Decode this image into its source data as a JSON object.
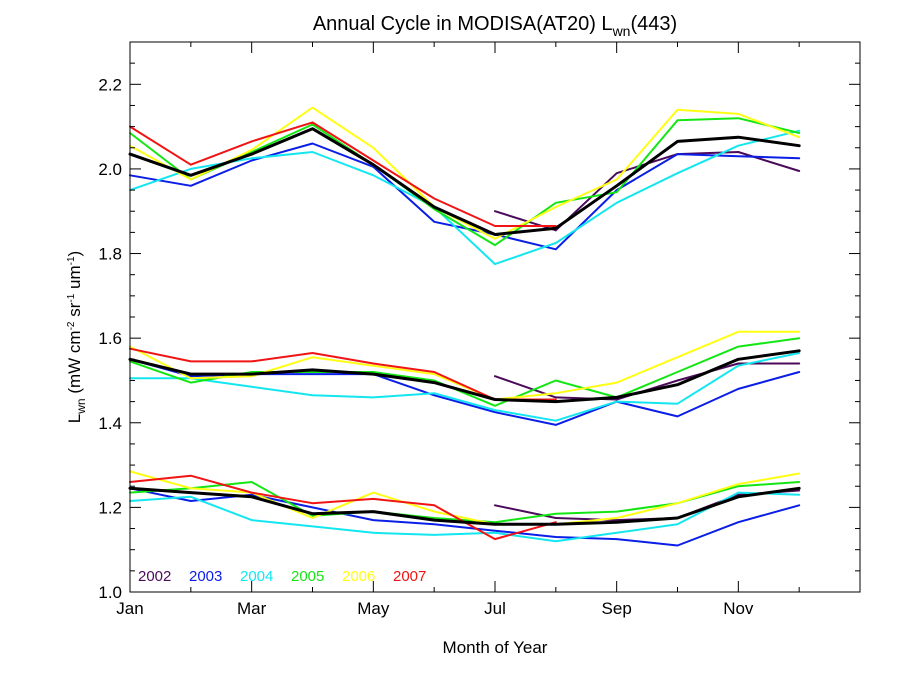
{
  "chart_data": {
    "type": "line",
    "title": "Annual Cycle in MODISA(AT20) L",
    "title_sub": "wn",
    "title_suffix": "(443)",
    "xlabel": "Month of Year",
    "ylabel": {
      "main": "L",
      "sub": "wn",
      "units_open": " (mW cm",
      "exp1": "-2",
      "mid": " sr",
      "exp2": "-1",
      "mid2": " um",
      "exp3": "-1",
      "close": ")"
    },
    "xlim": [
      1,
      13
    ],
    "ylim": [
      1.0,
      2.3
    ],
    "x_ticks": [
      1,
      3,
      5,
      7,
      9,
      11
    ],
    "x_tick_labels": [
      "Jan",
      "Mar",
      "May",
      "Jul",
      "Sep",
      "Nov"
    ],
    "y_ticks": [
      1.0,
      1.2,
      1.4,
      1.6,
      1.8,
      2.0,
      2.2
    ],
    "y_tick_labels": [
      "1.0",
      "1.2",
      "1.4",
      "1.6",
      "1.8",
      "2.0",
      "2.2"
    ],
    "grid": false,
    "legend_placement": "bottom-left",
    "x": [
      1,
      2,
      3,
      4,
      5,
      6,
      7,
      8,
      9,
      10,
      11,
      12
    ],
    "series": [
      {
        "name": "2002",
        "color": "#4b0a5a",
        "width": 2,
        "groups": [
          {
            "x": [
              7,
              8
            ],
            "y": [
              1.9,
              1.855
            ]
          },
          {
            "x": [
              7,
              8,
              9,
              10,
              11,
              12
            ],
            "y": [
              1.51,
              1.46,
              1.455,
              1.5,
              1.54,
              1.54
            ]
          },
          {
            "x": [
              7,
              8
            ],
            "y": [
              1.205,
              1.175
            ]
          },
          {
            "x": [
              8,
              9,
              10,
              11,
              12
            ],
            "y": [
              1.855,
              1.99,
              2.035,
              2.04,
              1.995
            ]
          },
          {
            "x": [
              8,
              9,
              10,
              11,
              12
            ],
            "y": [
              1.175,
              1.17,
              1.175,
              1.23,
              1.24
            ]
          }
        ]
      },
      {
        "name": "2003",
        "color": "#0a1ee6",
        "width": 2,
        "groups": [
          {
            "x": [
              1,
              2,
              3,
              4,
              5,
              6,
              7,
              8,
              9,
              10,
              11,
              12
            ],
            "y": [
              1.985,
              1.96,
              2.02,
              2.06,
              2.005,
              1.875,
              1.845,
              1.81,
              1.95,
              2.035,
              2.03,
              2.025
            ]
          },
          {
            "x": [
              1,
              2,
              3,
              4,
              5,
              6,
              7,
              8,
              9,
              10,
              11,
              12
            ],
            "y": [
              1.55,
              1.51,
              1.515,
              1.515,
              1.515,
              1.465,
              1.425,
              1.395,
              1.45,
              1.415,
              1.48,
              1.52
            ]
          },
          {
            "x": [
              1,
              2,
              3,
              4,
              5,
              6,
              7,
              8,
              9,
              10,
              11,
              12
            ],
            "y": [
              1.245,
              1.215,
              1.23,
              1.2,
              1.17,
              1.16,
              1.145,
              1.13,
              1.125,
              1.11,
              1.165,
              1.205
            ]
          }
        ]
      },
      {
        "name": "2004",
        "color": "#14e6f0",
        "width": 2,
        "groups": [
          {
            "x": [
              1,
              2,
              3,
              4,
              5,
              6,
              7,
              8,
              9,
              10,
              11,
              12
            ],
            "y": [
              1.95,
              2.0,
              2.025,
              2.04,
              1.985,
              1.91,
              1.775,
              1.825,
              1.92,
              1.99,
              2.055,
              2.09
            ]
          },
          {
            "x": [
              1,
              2,
              3,
              4,
              5,
              6,
              7,
              8,
              9,
              10,
              11,
              12
            ],
            "y": [
              1.505,
              1.505,
              1.485,
              1.465,
              1.46,
              1.47,
              1.43,
              1.405,
              1.45,
              1.445,
              1.535,
              1.565
            ]
          },
          {
            "x": [
              1,
              2,
              3,
              4,
              5,
              6,
              7,
              8,
              9,
              10,
              11,
              12
            ],
            "y": [
              1.215,
              1.225,
              1.17,
              1.155,
              1.14,
              1.135,
              1.14,
              1.12,
              1.14,
              1.16,
              1.235,
              1.23
            ]
          }
        ]
      },
      {
        "name": "2005",
        "color": "#14e614",
        "width": 2,
        "groups": [
          {
            "x": [
              1,
              2,
              3,
              4,
              5,
              6,
              7,
              8,
              9,
              10,
              11,
              12
            ],
            "y": [
              2.085,
              1.975,
              2.04,
              2.105,
              2.01,
              1.905,
              1.82,
              1.92,
              1.945,
              2.115,
              2.12,
              2.085
            ]
          },
          {
            "x": [
              1,
              2,
              3,
              4,
              5,
              6,
              7,
              8,
              9,
              10,
              11,
              12
            ],
            "y": [
              1.545,
              1.495,
              1.52,
              1.52,
              1.52,
              1.5,
              1.44,
              1.5,
              1.46,
              1.52,
              1.58,
              1.6
            ]
          },
          {
            "x": [
              1,
              2,
              3,
              4,
              5,
              6,
              7,
              8,
              9,
              10,
              11,
              12
            ],
            "y": [
              1.235,
              1.245,
              1.26,
              1.18,
              1.19,
              1.175,
              1.165,
              1.185,
              1.19,
              1.21,
              1.25,
              1.26
            ]
          }
        ]
      },
      {
        "name": "2006",
        "color": "#ffff14",
        "width": 2,
        "groups": [
          {
            "x": [
              1,
              2,
              3,
              4,
              5,
              6,
              7,
              8,
              9,
              10,
              11,
              12
            ],
            "y": [
              2.055,
              1.975,
              2.045,
              2.145,
              2.05,
              1.91,
              1.835,
              1.91,
              1.975,
              2.14,
              2.13,
              2.075
            ]
          },
          {
            "x": [
              1,
              2,
              3,
              4,
              5,
              6,
              7,
              8,
              9,
              10,
              11,
              12
            ],
            "y": [
              1.58,
              1.505,
              1.51,
              1.555,
              1.535,
              1.515,
              1.455,
              1.47,
              1.495,
              1.555,
              1.615,
              1.615
            ]
          },
          {
            "x": [
              1,
              2,
              3,
              4,
              5,
              6,
              7,
              8,
              9,
              10,
              11,
              12
            ],
            "y": [
              1.285,
              1.245,
              1.235,
              1.175,
              1.235,
              1.19,
              1.16,
              1.16,
              1.175,
              1.21,
              1.255,
              1.28
            ]
          }
        ]
      },
      {
        "name": "2007",
        "color": "#f01414",
        "width": 2,
        "groups": [
          {
            "x": [
              1,
              2,
              3,
              4,
              5,
              6,
              7,
              8
            ],
            "y": [
              2.1,
              2.01,
              2.065,
              2.11,
              2.02,
              1.93,
              1.865,
              1.865
            ]
          },
          {
            "x": [
              1,
              2,
              3,
              4,
              5,
              6,
              7,
              8
            ],
            "y": [
              1.575,
              1.545,
              1.545,
              1.565,
              1.54,
              1.52,
              1.455,
              1.455
            ]
          },
          {
            "x": [
              1,
              2,
              3,
              4,
              5,
              6,
              7,
              8
            ],
            "y": [
              1.26,
              1.275,
              1.235,
              1.21,
              1.22,
              1.205,
              1.125,
              1.165
            ]
          }
        ]
      },
      {
        "name": "",
        "color": "#000000",
        "width": 3,
        "groups": [
          {
            "x": [
              1,
              2,
              3,
              4,
              5,
              6,
              7,
              8,
              9,
              10,
              11,
              12
            ],
            "y": [
              2.035,
              1.985,
              2.035,
              2.095,
              2.01,
              1.91,
              1.845,
              1.86,
              1.96,
              2.065,
              2.075,
              2.055
            ]
          },
          {
            "x": [
              1,
              2,
              3,
              4,
              5,
              6,
              7,
              8,
              9,
              10,
              11,
              12
            ],
            "y": [
              1.55,
              1.515,
              1.515,
              1.525,
              1.515,
              1.495,
              1.455,
              1.45,
              1.46,
              1.49,
              1.55,
              1.57
            ]
          },
          {
            "x": [
              1,
              2,
              3,
              4,
              5,
              6,
              7,
              8,
              9,
              10,
              11,
              12
            ],
            "y": [
              1.245,
              1.235,
              1.225,
              1.185,
              1.19,
              1.17,
              1.16,
              1.16,
              1.165,
              1.175,
              1.225,
              1.245
            ]
          }
        ]
      }
    ]
  }
}
